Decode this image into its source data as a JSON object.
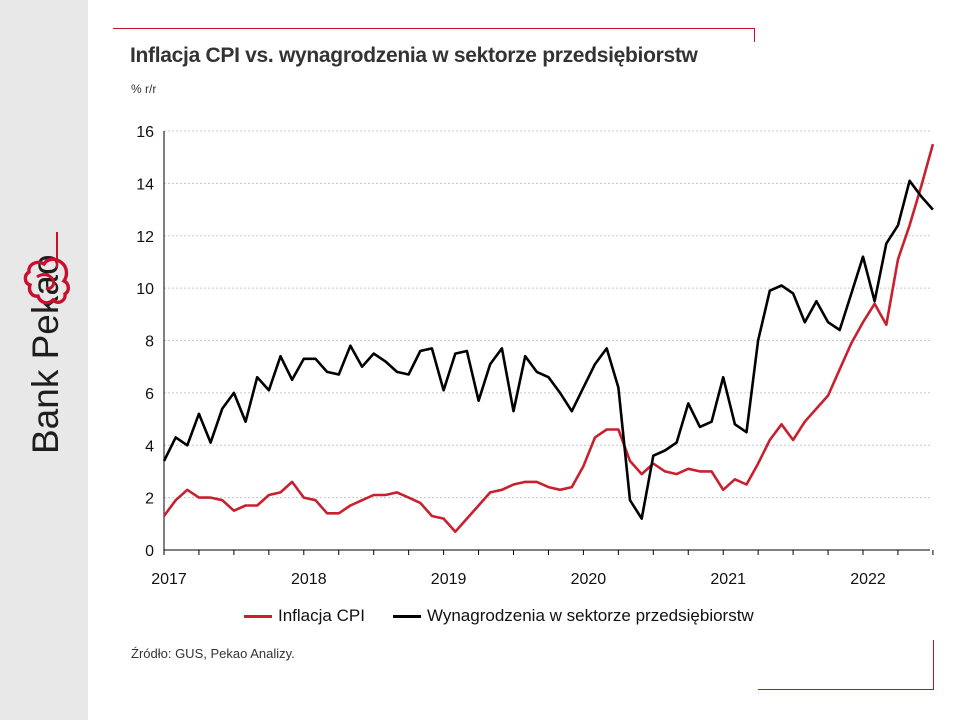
{
  "brand": {
    "name": "Bank Pekao"
  },
  "chart": {
    "title": "Inflacja CPI vs. wynagrodzenia w sektorze przedsiębiorstw",
    "unit_label": "% r/r",
    "source": "Źródło: GUS, Pekao Analizy."
  },
  "colors": {
    "cpi": "#c8202f",
    "wages": "#000000",
    "accent": "#c8102e",
    "grid": "#c8c8c8"
  },
  "chart_data": {
    "type": "line",
    "title": "Inflacja CPI vs. wynagrodzenia w sektorze przedsiębiorstw",
    "ylabel": "% r/r",
    "xlabel": "",
    "ylim": [
      0,
      16
    ],
    "yticks": [
      0,
      2,
      4,
      6,
      8,
      10,
      12,
      14,
      16
    ],
    "x_start": "2017-01",
    "xtick_labels": [
      "2017",
      "2018",
      "2019",
      "2020",
      "2021",
      "2022"
    ],
    "grid": true,
    "legend_position": "bottom",
    "series": [
      {
        "name": "Inflacja CPI",
        "color": "#c8202f",
        "values": [
          1.3,
          1.9,
          2.3,
          2.0,
          2.0,
          1.9,
          1.5,
          1.7,
          1.7,
          2.1,
          2.2,
          2.6,
          2.0,
          1.9,
          1.4,
          1.4,
          1.7,
          1.9,
          2.1,
          2.1,
          2.2,
          2.0,
          1.8,
          1.3,
          1.2,
          0.7,
          1.2,
          1.7,
          2.2,
          2.3,
          2.5,
          2.6,
          2.6,
          2.4,
          2.3,
          2.4,
          3.2,
          4.3,
          4.6,
          4.6,
          3.4,
          2.9,
          3.3,
          3.0,
          2.9,
          3.1,
          3.0,
          3.0,
          2.3,
          2.7,
          2.5,
          3.3,
          4.2,
          4.8,
          4.2,
          4.9,
          5.4,
          5.9,
          6.9,
          7.9,
          8.7,
          9.4,
          8.6,
          11.1,
          12.4,
          13.9,
          15.5
        ]
      },
      {
        "name": "Wynagrodzenia w sektorze przedsiębiorstw",
        "color": "#000000",
        "values": [
          3.4,
          4.3,
          4.0,
          5.2,
          4.1,
          5.4,
          6.0,
          4.9,
          6.6,
          6.1,
          7.4,
          6.5,
          7.3,
          7.3,
          6.8,
          6.7,
          7.8,
          7.0,
          7.5,
          7.2,
          6.8,
          6.7,
          7.6,
          7.7,
          6.1,
          7.5,
          7.6,
          5.7,
          7.1,
          7.7,
          5.3,
          7.4,
          6.8,
          6.6,
          6.0,
          5.3,
          6.2,
          7.1,
          7.7,
          6.2,
          1.9,
          1.2,
          3.6,
          3.8,
          4.1,
          5.6,
          4.7,
          4.9,
          6.6,
          4.8,
          4.5,
          8.0,
          9.9,
          10.1,
          9.8,
          8.7,
          9.5,
          8.7,
          8.4,
          9.8,
          11.2,
          9.5,
          11.7,
          12.4,
          14.1,
          13.5,
          13.0
        ]
      }
    ]
  }
}
